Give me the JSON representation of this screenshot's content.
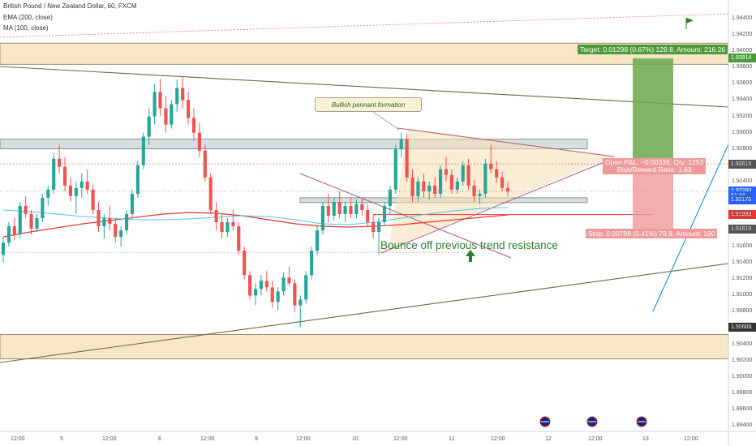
{
  "header": {
    "symbol_line": "British Pound / New Zealand Dollar, 60, FXCM",
    "ema_line": "EMA (200, close)",
    "ma_line": "MA (100, close)"
  },
  "annotations": {
    "callout": "Bullish pennant formation",
    "bounce": "Bounce off previous trend resistance",
    "flag_icon": "green-flag-icon",
    "arrow_icon": "green-up-arrow-icon"
  },
  "position": {
    "target_label": "Target: 0.01298 (0.67%) 129.8, Amount: 216.26",
    "pnl_line1": "Open P&L: −0.00336, Qty: 1253",
    "pnl_line2": "Risk/Reward Ratio: 1.63",
    "stop_label": "Stop: 0.00798 (0.41%) 79.8, Amount: 190"
  },
  "price_tags": [
    {
      "text": "1.93914",
      "price": 1.93914,
      "color": "#4c9a3a"
    },
    {
      "text": "1.92616",
      "price": 1.92616,
      "color": "#555555"
    },
    {
      "text": "1.92280",
      "price": 1.9228,
      "color": "#2962ff"
    },
    {
      "text": "51:44",
      "price": 1.92225,
      "color": "#2962ff"
    },
    {
      "text": "1.92175",
      "price": 1.92175,
      "color": "#2962ff"
    },
    {
      "text": "1.91993",
      "price": 1.91993,
      "color": "#e53935"
    },
    {
      "text": "1.91818",
      "price": 1.91818,
      "color": "#555555"
    },
    {
      "text": "1.90608",
      "price": 1.90608,
      "color": "#333333"
    }
  ],
  "colors": {
    "up_candle": "#26a69a",
    "down_candle": "#ef5350",
    "ema": "#e53935",
    "ma": "#4fc3f7",
    "zone_fill": "#f5deb3",
    "target_fill": "#6aa84f",
    "stop_fill": "#ef9a9a"
  },
  "calendar_icons": [
    "flag-icon-nz-au",
    "flag-icon-uk",
    "flag-icon-nz"
  ],
  "chart_data": {
    "type": "candlestick",
    "title": "British Pound / New Zealand Dollar, 60, FXCM",
    "ylim": [
      1.8935,
      1.9455
    ],
    "y_ticks": [
      "1.94400",
      "1.94200",
      "1.94000",
      "1.93800",
      "1.93600",
      "1.93400",
      "1.93200",
      "1.93000",
      "1.92800",
      "1.92600",
      "1.92400",
      "1.92200",
      "1.92000",
      "1.91800",
      "1.91600",
      "1.91400",
      "1.91200",
      "1.91000",
      "1.90800",
      "1.90600",
      "1.90400",
      "1.90200",
      "1.90000",
      "1.89800",
      "1.89600",
      "1.89400"
    ],
    "x_ticks": [
      "12:00",
      "5",
      "12:00",
      "6",
      "12:00",
      "9",
      "12:00",
      "10",
      "12:00",
      "11",
      "12:00",
      "12",
      "12:00",
      "13",
      "12:00"
    ],
    "series": [
      {
        "name": "EMA (200, close)",
        "values": [
          1.9172,
          1.9178,
          1.9183,
          1.9188,
          1.9192,
          1.9196,
          1.92,
          1.9202,
          1.9201,
          1.9198,
          1.9193,
          1.9188,
          1.9185,
          1.9184,
          1.9185,
          1.9187,
          1.919,
          1.9193,
          1.9196,
          1.9199
        ]
      },
      {
        "name": "MA (100, close)",
        "values": [
          1.9205,
          1.9203,
          1.92,
          1.9197,
          1.9195,
          1.9193,
          1.9193,
          1.9194,
          1.9196,
          1.9198,
          1.9197,
          1.9193,
          1.9188,
          1.9187,
          1.919,
          1.9195,
          1.92,
          1.9204,
          1.9207,
          1.9208
        ]
      }
    ],
    "candles": [
      [
        1.915,
        1.9172,
        1.914,
        1.9165
      ],
      [
        1.9165,
        1.919,
        1.916,
        1.9185
      ],
      [
        1.9185,
        1.9195,
        1.9168,
        1.9175
      ],
      [
        1.9175,
        1.9215,
        1.917,
        1.921
      ],
      [
        1.921,
        1.9222,
        1.9195,
        1.92
      ],
      [
        1.92,
        1.9205,
        1.9175,
        1.9182
      ],
      [
        1.9182,
        1.92,
        1.9178,
        1.9195
      ],
      [
        1.9195,
        1.9225,
        1.919,
        1.922
      ],
      [
        1.922,
        1.9235,
        1.921,
        1.923
      ],
      [
        1.923,
        1.9275,
        1.9225,
        1.9268
      ],
      [
        1.9268,
        1.9285,
        1.925,
        1.9258
      ],
      [
        1.9258,
        1.927,
        1.9228,
        1.9235
      ],
      [
        1.9235,
        1.9245,
        1.9215,
        1.9222
      ],
      [
        1.9222,
        1.924,
        1.92,
        1.9232
      ],
      [
        1.9232,
        1.925,
        1.922,
        1.924
      ],
      [
        1.924,
        1.9255,
        1.9225,
        1.923
      ],
      [
        1.923,
        1.9236,
        1.92,
        1.9205
      ],
      [
        1.9205,
        1.9215,
        1.9178,
        1.9185
      ],
      [
        1.9185,
        1.92,
        1.917,
        1.9195
      ],
      [
        1.9195,
        1.921,
        1.918,
        1.9188
      ],
      [
        1.9188,
        1.9195,
        1.9165,
        1.9172
      ],
      [
        1.9172,
        1.9185,
        1.916,
        1.918
      ],
      [
        1.918,
        1.9205,
        1.9175,
        1.92
      ],
      [
        1.92,
        1.923,
        1.9195,
        1.9225
      ],
      [
        1.9225,
        1.9265,
        1.922,
        1.926
      ],
      [
        1.926,
        1.93,
        1.9255,
        1.9295
      ],
      [
        1.9295,
        1.933,
        1.9285,
        1.932
      ],
      [
        1.932,
        1.936,
        1.931,
        1.935
      ],
      [
        1.935,
        1.9366,
        1.932,
        1.933
      ],
      [
        1.933,
        1.9345,
        1.93,
        1.931
      ],
      [
        1.931,
        1.934,
        1.9305,
        1.9335
      ],
      [
        1.9335,
        1.9365,
        1.9325,
        1.9355
      ],
      [
        1.9355,
        1.9368,
        1.933,
        1.934
      ],
      [
        1.934,
        1.935,
        1.931,
        1.9318
      ],
      [
        1.9318,
        1.933,
        1.929,
        1.93
      ],
      [
        1.93,
        1.9312,
        1.927,
        1.9278
      ],
      [
        1.9278,
        1.9285,
        1.924,
        1.9245
      ],
      [
        1.9245,
        1.925,
        1.92,
        1.9205
      ],
      [
        1.9205,
        1.9215,
        1.918,
        1.919
      ],
      [
        1.919,
        1.92,
        1.917,
        1.9178
      ],
      [
        1.9178,
        1.9195,
        1.9172,
        1.919
      ],
      [
        1.919,
        1.9205,
        1.918,
        1.9185
      ],
      [
        1.9185,
        1.919,
        1.915,
        1.9155
      ],
      [
        1.9155,
        1.916,
        1.912,
        1.9125
      ],
      [
        1.9125,
        1.913,
        1.9095,
        1.91
      ],
      [
        1.91,
        1.9115,
        1.9088,
        1.9108
      ],
      [
        1.9108,
        1.9125,
        1.91,
        1.9118
      ],
      [
        1.9118,
        1.913,
        1.9105,
        1.911
      ],
      [
        1.911,
        1.9118,
        1.9085,
        1.9092
      ],
      [
        1.9092,
        1.911,
        1.9082,
        1.9105
      ],
      [
        1.9105,
        1.9128,
        1.91,
        1.9122
      ],
      [
        1.9122,
        1.9135,
        1.9112,
        1.9115
      ],
      [
        1.9115,
        1.912,
        1.908,
        1.9088
      ],
      [
        1.9088,
        1.91,
        1.9061,
        1.9095
      ],
      [
        1.9095,
        1.913,
        1.909,
        1.9125
      ],
      [
        1.9125,
        1.916,
        1.912,
        1.9155
      ],
      [
        1.9155,
        1.9185,
        1.915,
        1.918
      ],
      [
        1.918,
        1.9215,
        1.9175,
        1.921
      ],
      [
        1.921,
        1.9225,
        1.919,
        1.9198
      ],
      [
        1.9198,
        1.922,
        1.9192,
        1.9215
      ],
      [
        1.9215,
        1.9228,
        1.9195,
        1.92
      ],
      [
        1.92,
        1.9215,
        1.919,
        1.921
      ],
      [
        1.921,
        1.922,
        1.9195,
        1.92
      ],
      [
        1.92,
        1.9218,
        1.9195,
        1.9212
      ],
      [
        1.9212,
        1.922,
        1.9198,
        1.9205
      ],
      [
        1.9205,
        1.9212,
        1.9185,
        1.919
      ],
      [
        1.919,
        1.92,
        1.917,
        1.9178
      ],
      [
        1.9178,
        1.9195,
        1.915,
        1.919
      ],
      [
        1.919,
        1.9215,
        1.9185,
        1.921
      ],
      [
        1.921,
        1.9235,
        1.92,
        1.923
      ],
      [
        1.923,
        1.9285,
        1.9225,
        1.928
      ],
      [
        1.928,
        1.93,
        1.927,
        1.9292
      ],
      [
        1.9292,
        1.9298,
        1.924,
        1.9245
      ],
      [
        1.9245,
        1.9255,
        1.9215,
        1.9222
      ],
      [
        1.9222,
        1.9245,
        1.9215,
        1.924
      ],
      [
        1.924,
        1.925,
        1.922,
        1.9228
      ],
      [
        1.9228,
        1.924,
        1.9218,
        1.9235
      ],
      [
        1.9235,
        1.9245,
        1.922,
        1.9225
      ],
      [
        1.9225,
        1.926,
        1.922,
        1.9255
      ],
      [
        1.9255,
        1.927,
        1.924,
        1.9248
      ],
      [
        1.9248,
        1.9255,
        1.9225,
        1.923
      ],
      [
        1.923,
        1.9245,
        1.9225,
        1.924
      ],
      [
        1.924,
        1.9265,
        1.9235,
        1.926
      ],
      [
        1.926,
        1.9268,
        1.923,
        1.9235
      ],
      [
        1.9235,
        1.9242,
        1.9215,
        1.9222
      ],
      [
        1.9222,
        1.923,
        1.9212,
        1.9225
      ],
      [
        1.9225,
        1.9268,
        1.922,
        1.9262
      ],
      [
        1.9262,
        1.9285,
        1.925,
        1.9255
      ],
      [
        1.9255,
        1.9265,
        1.9238,
        1.9245
      ],
      [
        1.9245,
        1.9252,
        1.9228,
        1.9232
      ],
      [
        1.9232,
        1.924,
        1.9222,
        1.9228
      ]
    ],
    "zones": [
      {
        "label": "resistance-zone",
        "from": 1.9384,
        "to": 1.941
      },
      {
        "label": "pennant-top-zone",
        "from": 1.928,
        "to": 1.9292
      },
      {
        "label": "pennant-base-zone",
        "from": 1.9214,
        "to": 1.922
      },
      {
        "label": "support-zone",
        "from": 1.9022,
        "to": 1.9052
      }
    ],
    "position": {
      "entry": 1.92616,
      "target": 1.93914,
      "stop": 1.91818
    }
  }
}
